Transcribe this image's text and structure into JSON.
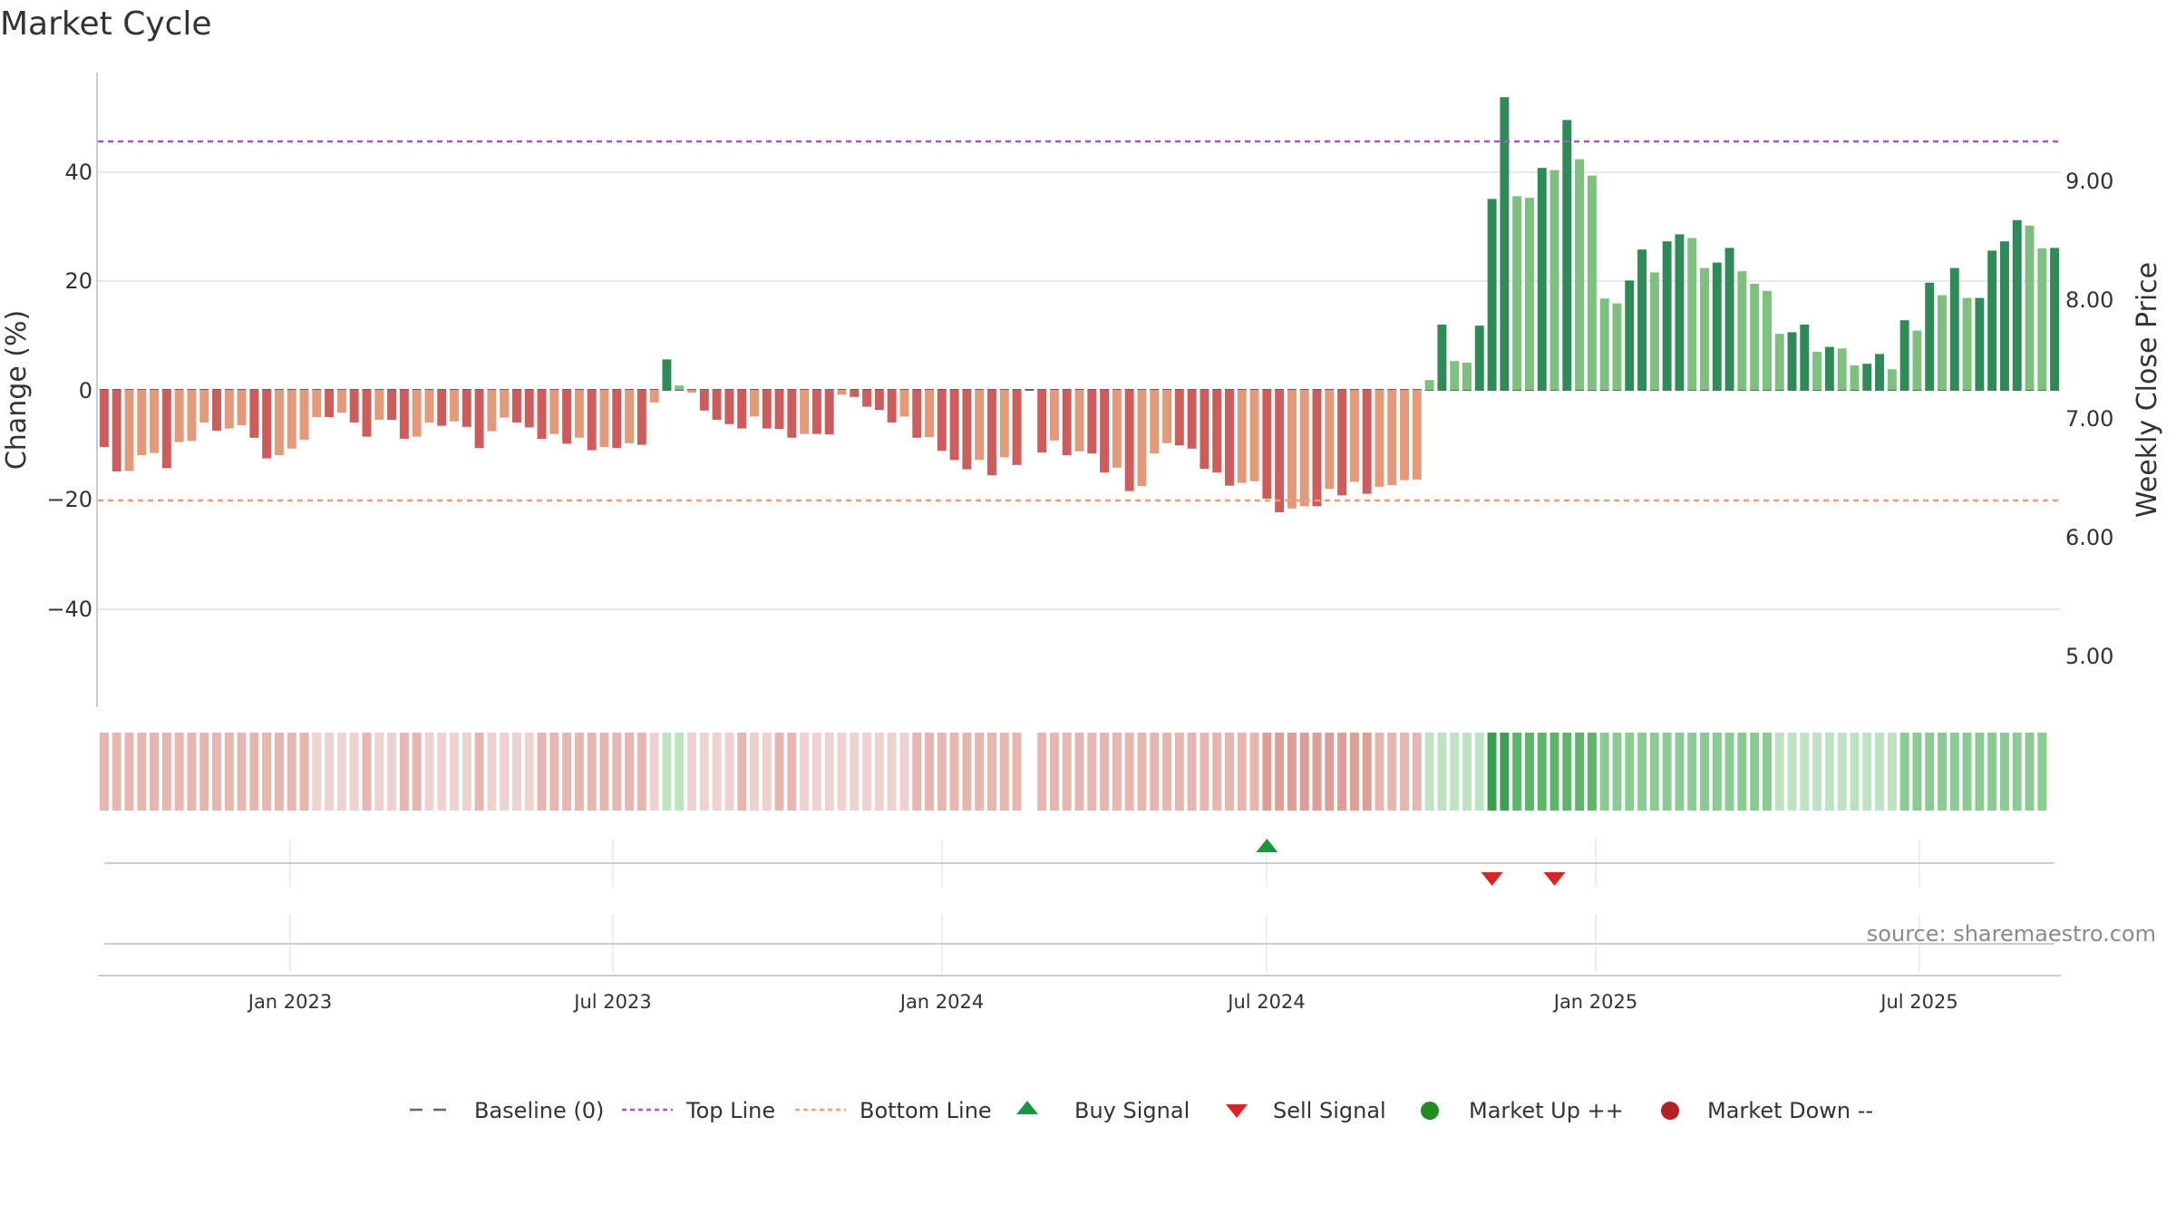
{
  "title": "Market Cycle",
  "source": "source: sharemaestro.com",
  "chart_data": {
    "type": "bar",
    "y_left_label": "Change (%)",
    "y_right_label": "Weekly Close Price",
    "y_left_ticks": [
      "40",
      "20",
      "0",
      "−20",
      "−40"
    ],
    "y_right_ticks": [
      "9.00",
      "8.00",
      "7.00",
      "6.00",
      "5.00"
    ],
    "y_left_range": [
      -58,
      58
    ],
    "y_right_range": [
      4.7,
      9.9
    ],
    "grid": true,
    "reference_lines": {
      "top_line": 45.5,
      "bottom_line": -20.2,
      "baseline": 0
    },
    "x_ticks": [
      "Jan 2023",
      "Jul 2023",
      "Jan 2024",
      "Jul 2024",
      "Jan 2025",
      "Jul 2025"
    ],
    "change_pct": [
      -10.5,
      -15,
      -14.9,
      -12,
      -11.6,
      -14.4,
      -9.6,
      -9.4,
      -6,
      -7.5,
      -7.1,
      -6.5,
      -8.8,
      -12.6,
      -12,
      -10.8,
      -9.2,
      -5,
      -5,
      -4.2,
      -6,
      -8.6,
      -5.5,
      -5.5,
      -9,
      -8.6,
      -6,
      -6.6,
      -5.8,
      -6.8,
      -10.7,
      -7.6,
      -5.1,
      -6,
      -6.9,
      -9,
      -8.1,
      -9.9,
      -8.8,
      -11.1,
      -10.5,
      -10.7,
      -9.8,
      -10.1,
      -2.3,
      5.6,
      0.8,
      -0.5,
      -3.8,
      -5.5,
      -6.3,
      -7.1,
      -4.9,
      -7.1,
      -7.2,
      -8.8,
      -8.1,
      -8.1,
      -8.2,
      -0.9,
      -1.3,
      -3.1,
      -3.7,
      -6,
      -4.9,
      -8.8,
      -8.7,
      -11.2,
      -12.9,
      -14.6,
      -12.9,
      -15.7,
      -12.4,
      -13.8,
      0,
      -11.5,
      -9.3,
      -12,
      -11.3,
      -11.7,
      -15.2,
      -14.3,
      -18.6,
      -17.7,
      -11.7,
      -9.8,
      -10.2,
      -10.8,
      -14.5,
      -15.2,
      -17.6,
      -17.1,
      -16.8,
      -20,
      -22.5,
      -21.8,
      -21.4,
      -21.4,
      -18.2,
      -19.4,
      -16.9,
      -19.1,
      -17.8,
      -17.5,
      -16.6,
      -16.5,
      1.8,
      12,
      5.3,
      5,
      11.8,
      35.1,
      53.8,
      35.6,
      35.3,
      40.8,
      40.4,
      49.6,
      42.4,
      39.4,
      16.8,
      15.9,
      20.1,
      25.8,
      21.6,
      27.3,
      28.6,
      27.9,
      22.4,
      23.4,
      26.1,
      21.8,
      19.5,
      18.2,
      10.3,
      10.6,
      12,
      7,
      7.9,
      7.6,
      4.5,
      4.8,
      6.6,
      3.8,
      12.8,
      10.9,
      19.7,
      17.4,
      22.4,
      16.9,
      16.9,
      25.6,
      27.3,
      31.2,
      30.2,
      26,
      26.1
    ],
    "regime_strip": [
      -2,
      -2,
      -2,
      -2,
      -2,
      -2,
      -2,
      -2,
      -2,
      -2,
      -2,
      -2,
      -2,
      -2,
      -2,
      -2,
      -2,
      -1,
      -1,
      -1,
      -1,
      -2,
      -1,
      -1,
      -2,
      -2,
      -1,
      -1,
      -1,
      -1,
      -2,
      -1,
      -1,
      -1,
      -1,
      -2,
      -2,
      -2,
      -2,
      -2,
      -2,
      -2,
      -2,
      -2,
      -1,
      1,
      1,
      -1,
      -1,
      -1,
      -1,
      -2,
      -1,
      -1,
      -2,
      -2,
      -1,
      -1,
      -1,
      -1,
      -1,
      -1,
      -1,
      -1,
      -1,
      -2,
      -2,
      -2,
      -2,
      -2,
      -2,
      -2,
      -2,
      -2,
      0,
      -2,
      -2,
      -2,
      -2,
      -2,
      -2,
      -2,
      -2,
      -2,
      -2,
      -2,
      -2,
      -2,
      -2,
      -2,
      -2,
      -2,
      -2,
      -3,
      -3,
      -3,
      -3,
      -3,
      -3,
      -3,
      -3,
      -3,
      -2,
      -2,
      -2,
      -2,
      1,
      1,
      1,
      1,
      1,
      4,
      4,
      3,
      3,
      3,
      3,
      3,
      3,
      3,
      2,
      2,
      2,
      2,
      2,
      2,
      2,
      2,
      2,
      2,
      2,
      2,
      2,
      2,
      1,
      1,
      1,
      1,
      1,
      1,
      1,
      1,
      1,
      1,
      2,
      2,
      2,
      2,
      2,
      2,
      2,
      2,
      2,
      2,
      2,
      2
    ],
    "signals": {
      "buy": [
        93
      ],
      "sell": [
        111,
        116
      ]
    },
    "legend": [
      "Baseline (0)",
      "Top Line",
      "Bottom Line",
      "Buy Signal",
      "Sell Signal",
      "Market Up ++",
      "Market Down --"
    ],
    "colors": {
      "up_strong": "#2e8a57",
      "up_light": "#7fbf7f",
      "down_strong": "#cd5c5c",
      "down_light": "#e39a7a",
      "top_line": "#9b59c6",
      "bottom_line": "#f0a070",
      "buy": "#1a9641",
      "sell": "#d62728",
      "market_up": "#228b22",
      "market_down": "#b22222",
      "baseline": "#666666"
    }
  }
}
